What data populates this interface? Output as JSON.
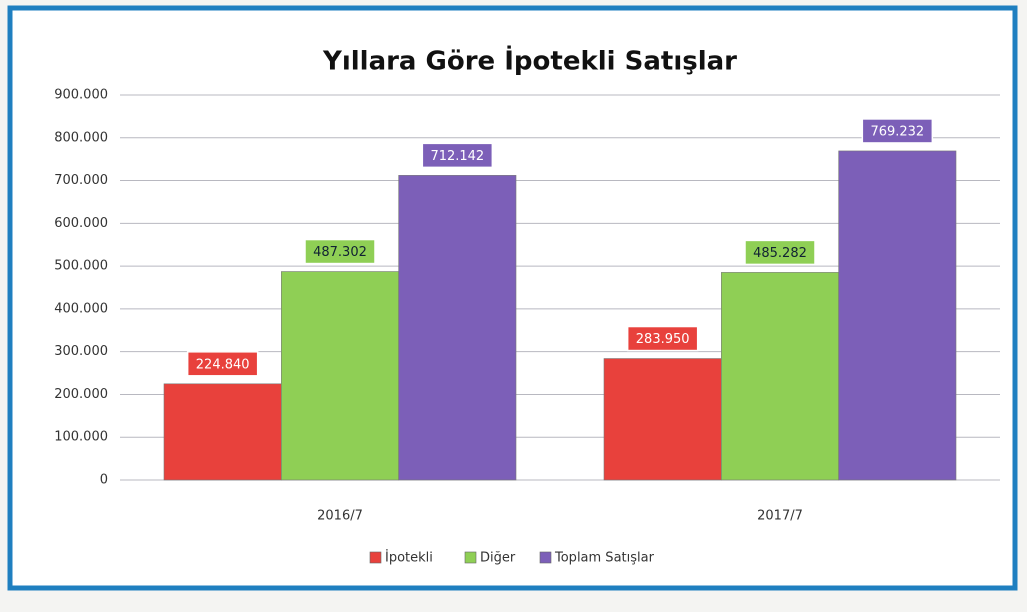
{
  "chart_data": {
    "type": "bar",
    "title": "Yıllara Göre İpotekli Satışlar",
    "categories": [
      "2016/7",
      "2017/7"
    ],
    "series": [
      {
        "name": "İpotekli",
        "color": "#e8413c",
        "values": [
          224840,
          283950
        ],
        "value_labels": [
          "224.840",
          "283.950"
        ]
      },
      {
        "name": "Diğer",
        "color": "#8fcf55",
        "values": [
          487302,
          485282
        ],
        "value_labels": [
          "487.302",
          "485.282"
        ]
      },
      {
        "name": "Toplam Satışlar",
        "color": "#7c5fb8",
        "values": [
          712142,
          769232
        ],
        "value_labels": [
          "712.142",
          "769.232"
        ]
      }
    ],
    "ylim": [
      0,
      900000
    ],
    "yticks": [
      0,
      {
        "value": 100000,
        "label": "100.000"
      },
      {
        "value": 200000,
        "label": "200.000"
      },
      {
        "value": 300000,
        "label": "300.000"
      },
      {
        "value": 400000,
        "label": "400.000"
      },
      {
        "value": 500000,
        "label": "500.000"
      },
      {
        "value": 600000,
        "label": "600.000"
      },
      {
        "value": 700000,
        "label": "700.000"
      },
      {
        "value": 800000,
        "label": "800.000"
      },
      {
        "value": 900000,
        "label": "900.000"
      }
    ],
    "grid": true,
    "legend": "bottom"
  }
}
